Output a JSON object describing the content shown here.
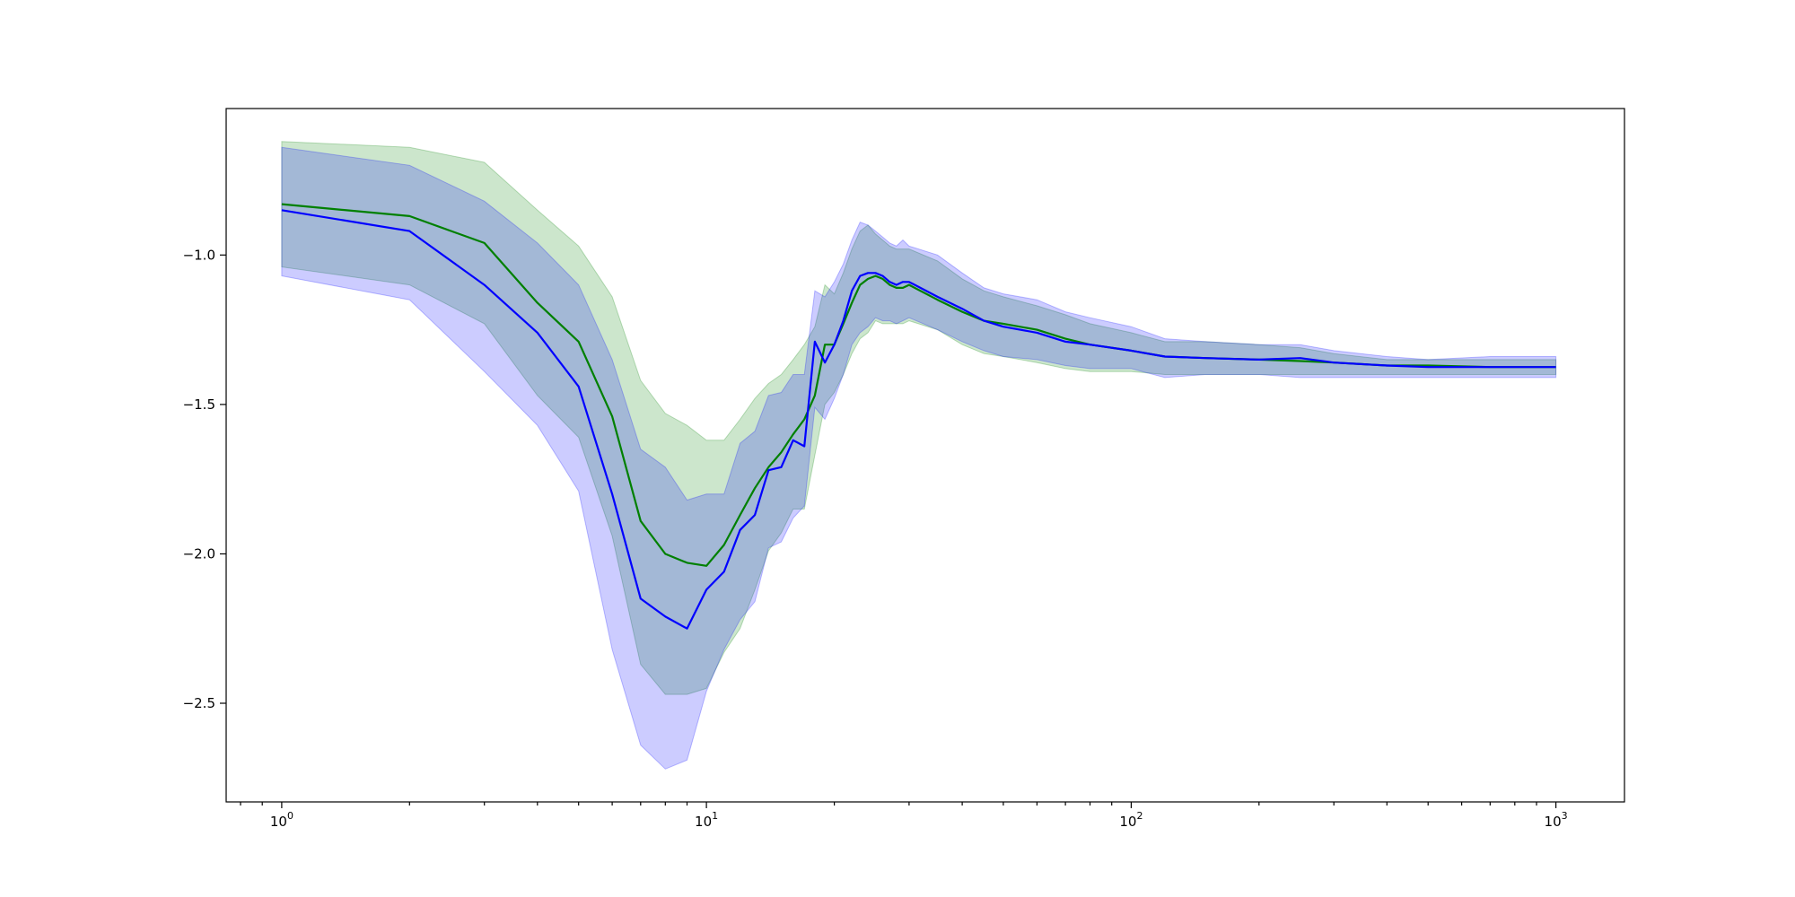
{
  "chart_data": {
    "type": "line",
    "title": "",
    "xlabel": "",
    "ylabel": "",
    "xscale": "log",
    "xlim": [
      0.74,
      1450
    ],
    "ylim": [
      -2.83,
      -0.51
    ],
    "grid": false,
    "legend": "none",
    "x_ticks": [
      {
        "value": 1,
        "base": "10",
        "exp": "0"
      },
      {
        "value": 10,
        "base": "10",
        "exp": "1"
      },
      {
        "value": 100,
        "base": "10",
        "exp": "2"
      },
      {
        "value": 1000,
        "base": "10",
        "exp": "3"
      }
    ],
    "y_ticks": [
      {
        "value": -1.0,
        "label": "−1.0"
      },
      {
        "value": -1.5,
        "label": "−1.5"
      },
      {
        "value": -2.0,
        "label": "−2.0"
      },
      {
        "value": -2.5,
        "label": "−2.5"
      }
    ],
    "series": [
      {
        "color": "#008000",
        "band_color": "#008000",
        "band_opacity": 0.2,
        "x": [
          1,
          2,
          3,
          4,
          5,
          6,
          7,
          8,
          9,
          10,
          11,
          12,
          13,
          14,
          15,
          16,
          17,
          18,
          19,
          20,
          21,
          22,
          23,
          24,
          25,
          26,
          27,
          28,
          29,
          30,
          35,
          40,
          45,
          50,
          60,
          70,
          80,
          100,
          120,
          150,
          200,
          250,
          300,
          400,
          500,
          700,
          1000
        ],
        "values": [
          -0.83,
          -0.87,
          -0.96,
          -1.16,
          -1.29,
          -1.54,
          -1.89,
          -2.0,
          -2.03,
          -2.04,
          -1.97,
          -1.87,
          -1.78,
          -1.71,
          -1.66,
          -1.6,
          -1.55,
          -1.47,
          -1.3,
          -1.3,
          -1.23,
          -1.16,
          -1.1,
          -1.08,
          -1.07,
          -1.08,
          -1.1,
          -1.11,
          -1.11,
          -1.1,
          -1.15,
          -1.19,
          -1.22,
          -1.23,
          -1.25,
          -1.28,
          -1.3,
          -1.32,
          -1.34,
          -1.345,
          -1.35,
          -1.355,
          -1.36,
          -1.37,
          -1.37,
          -1.375,
          -1.375
        ],
        "upper": [
          -0.62,
          -0.64,
          -0.69,
          -0.85,
          -0.97,
          -1.14,
          -1.42,
          -1.53,
          -1.57,
          -1.62,
          -1.62,
          -1.55,
          -1.48,
          -1.43,
          -1.4,
          -1.35,
          -1.3,
          -1.24,
          -1.1,
          -1.13,
          -1.06,
          -0.98,
          -0.92,
          -0.9,
          -0.93,
          -0.95,
          -0.97,
          -0.98,
          -0.98,
          -0.98,
          -1.02,
          -1.08,
          -1.12,
          -1.14,
          -1.17,
          -1.2,
          -1.23,
          -1.26,
          -1.29,
          -1.29,
          -1.3,
          -1.31,
          -1.33,
          -1.35,
          -1.35,
          -1.35,
          -1.35
        ],
        "lower": [
          -1.04,
          -1.1,
          -1.23,
          -1.47,
          -1.61,
          -1.94,
          -2.37,
          -2.47,
          -2.47,
          -2.45,
          -2.33,
          -2.25,
          -2.12,
          -1.99,
          -1.93,
          -1.85,
          -1.85,
          -1.67,
          -1.5,
          -1.46,
          -1.4,
          -1.33,
          -1.28,
          -1.26,
          -1.22,
          -1.23,
          -1.23,
          -1.23,
          -1.23,
          -1.22,
          -1.25,
          -1.3,
          -1.33,
          -1.34,
          -1.36,
          -1.38,
          -1.39,
          -1.39,
          -1.4,
          -1.4,
          -1.4,
          -1.4,
          -1.4,
          -1.4,
          -1.4,
          -1.4,
          -1.4
        ]
      },
      {
        "color": "#0000ff",
        "band_color": "#0000ff",
        "band_opacity": 0.2,
        "x": [
          1,
          2,
          3,
          4,
          5,
          6,
          7,
          8,
          9,
          10,
          11,
          12,
          13,
          14,
          15,
          16,
          17,
          18,
          19,
          20,
          21,
          22,
          23,
          24,
          25,
          26,
          27,
          28,
          29,
          30,
          35,
          40,
          45,
          50,
          60,
          70,
          80,
          100,
          120,
          150,
          200,
          250,
          300,
          400,
          500,
          700,
          1000
        ],
        "values": [
          -0.85,
          -0.92,
          -1.1,
          -1.26,
          -1.44,
          -1.8,
          -2.15,
          -2.21,
          -2.25,
          -2.12,
          -2.06,
          -1.92,
          -1.87,
          -1.72,
          -1.71,
          -1.62,
          -1.64,
          -1.29,
          -1.36,
          -1.3,
          -1.22,
          -1.12,
          -1.07,
          -1.06,
          -1.06,
          -1.07,
          -1.09,
          -1.1,
          -1.09,
          -1.09,
          -1.14,
          -1.18,
          -1.22,
          -1.24,
          -1.26,
          -1.29,
          -1.3,
          -1.32,
          -1.34,
          -1.345,
          -1.35,
          -1.345,
          -1.36,
          -1.37,
          -1.375,
          -1.375,
          -1.375
        ],
        "upper": [
          -0.64,
          -0.7,
          -0.82,
          -0.96,
          -1.1,
          -1.35,
          -1.65,
          -1.71,
          -1.82,
          -1.8,
          -1.8,
          -1.63,
          -1.59,
          -1.47,
          -1.46,
          -1.4,
          -1.4,
          -1.12,
          -1.14,
          -1.09,
          -1.03,
          -0.95,
          -0.89,
          -0.9,
          -0.92,
          -0.94,
          -0.96,
          -0.97,
          -0.95,
          -0.97,
          -1.0,
          -1.06,
          -1.11,
          -1.13,
          -1.15,
          -1.19,
          -1.21,
          -1.24,
          -1.28,
          -1.29,
          -1.3,
          -1.3,
          -1.32,
          -1.34,
          -1.35,
          -1.34,
          -1.34
        ],
        "lower": [
          -1.07,
          -1.15,
          -1.39,
          -1.57,
          -1.79,
          -2.32,
          -2.64,
          -2.72,
          -2.69,
          -2.46,
          -2.32,
          -2.22,
          -2.16,
          -1.98,
          -1.96,
          -1.88,
          -1.84,
          -1.51,
          -1.55,
          -1.48,
          -1.4,
          -1.3,
          -1.26,
          -1.24,
          -1.21,
          -1.22,
          -1.22,
          -1.23,
          -1.22,
          -1.21,
          -1.25,
          -1.29,
          -1.32,
          -1.34,
          -1.35,
          -1.37,
          -1.38,
          -1.38,
          -1.41,
          -1.4,
          -1.4,
          -1.41,
          -1.41,
          -1.41,
          -1.41,
          -1.41,
          -1.41
        ]
      }
    ]
  }
}
